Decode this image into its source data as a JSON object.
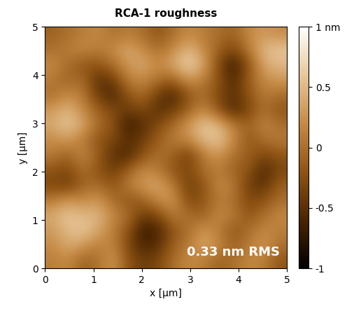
{
  "chart_data": {
    "type": "heatmap",
    "title": "RCA-1 roughness",
    "x_label": "x [µm]",
    "y_label": "y [µm]",
    "xlim": [
      0,
      5
    ],
    "ylim": [
      0,
      5
    ],
    "xticks": [
      0,
      1,
      2,
      3,
      4,
      5
    ],
    "yticks": [
      0,
      1,
      2,
      3,
      4,
      5
    ],
    "annotation": "0.33 nm RMS",
    "colorbar_range": [
      -1,
      1
    ],
    "colorbar_ticks": [
      -1,
      -0.5,
      0,
      0.5,
      {
        "value": 1,
        "label": "1 nm"
      }
    ],
    "cells": [
      [
        0.1,
        0.2,
        -0.1,
        0.0,
        0.3,
        -0.2,
        -0.4,
        -0.3,
        0.0,
        0.2,
        0.1,
        -0.1,
        0.0,
        0.2,
        0.1,
        -0.2
      ],
      [
        0.2,
        0.4,
        0.3,
        0.1,
        0.2,
        -0.3,
        -0.6,
        -0.5,
        -0.1,
        0.1,
        0.4,
        0.2,
        -0.1,
        0.1,
        0.3,
        0.0
      ],
      [
        0.3,
        0.5,
        0.6,
        0.4,
        0.1,
        -0.2,
        -0.7,
        -0.6,
        -0.2,
        0.0,
        0.3,
        0.1,
        -0.2,
        0.0,
        0.2,
        0.1
      ],
      [
        0.4,
        0.6,
        0.5,
        0.5,
        0.2,
        0.0,
        -0.4,
        -0.3,
        0.1,
        0.0,
        -0.1,
        0.2,
        0.1,
        -0.2,
        0.0,
        0.2
      ],
      [
        0.1,
        0.3,
        0.2,
        0.3,
        0.0,
        -0.2,
        -0.1,
        0.2,
        0.3,
        -0.3,
        -0.2,
        0.1,
        0.0,
        -0.3,
        -0.2,
        0.0
      ],
      [
        -0.3,
        -0.4,
        -0.1,
        0.0,
        -0.2,
        0.1,
        0.3,
        0.4,
        0.1,
        -0.4,
        -0.2,
        0.2,
        0.1,
        -0.4,
        -0.5,
        -0.1
      ],
      [
        -0.2,
        -0.3,
        0.0,
        -0.2,
        -0.4,
        -0.1,
        0.2,
        0.1,
        -0.2,
        -0.3,
        0.0,
        0.1,
        -0.1,
        -0.2,
        -0.6,
        -0.3
      ],
      [
        0.1,
        -0.1,
        0.2,
        -0.1,
        -0.5,
        -0.6,
        -0.2,
        0.0,
        -0.1,
        -0.4,
        0.1,
        0.3,
        0.0,
        -0.1,
        -0.3,
        -0.2
      ],
      [
        0.2,
        0.3,
        0.1,
        -0.2,
        -0.3,
        -0.5,
        -0.4,
        -0.1,
        0.1,
        0.2,
        0.5,
        0.6,
        0.2,
        -0.2,
        0.0,
        0.1
      ],
      [
        0.4,
        0.6,
        0.4,
        0.0,
        -0.2,
        -0.7,
        -0.5,
        -0.3,
        0.0,
        0.3,
        0.6,
        0.5,
        0.1,
        -0.1,
        0.2,
        0.0
      ],
      [
        0.3,
        0.5,
        0.2,
        -0.1,
        -0.3,
        -0.4,
        -0.3,
        -0.5,
        -0.4,
        -0.1,
        0.2,
        -0.2,
        -0.6,
        -0.3,
        0.0,
        -0.2
      ],
      [
        0.0,
        0.2,
        0.1,
        -0.4,
        -0.6,
        -0.2,
        0.0,
        -0.4,
        -0.6,
        -0.2,
        0.0,
        -0.3,
        -0.5,
        -0.2,
        0.1,
        0.0
      ],
      [
        0.1,
        -0.1,
        0.0,
        -0.5,
        -0.4,
        0.1,
        0.2,
        0.0,
        -0.1,
        0.3,
        0.1,
        -0.2,
        -0.6,
        -0.1,
        0.2,
        0.3
      ],
      [
        0.2,
        0.0,
        -0.2,
        -0.2,
        0.0,
        0.3,
        0.4,
        0.2,
        0.4,
        0.7,
        0.4,
        -0.3,
        -0.7,
        -0.2,
        0.4,
        0.5
      ],
      [
        0.0,
        0.1,
        0.2,
        0.1,
        0.2,
        0.4,
        0.2,
        0.0,
        0.2,
        0.5,
        0.2,
        -0.1,
        -0.3,
        0.1,
        0.5,
        0.6
      ],
      [
        -0.1,
        0.0,
        0.1,
        0.2,
        0.0,
        0.1,
        0.0,
        -0.2,
        0.0,
        0.2,
        0.1,
        0.0,
        -0.1,
        0.2,
        0.3,
        0.2
      ]
    ]
  }
}
